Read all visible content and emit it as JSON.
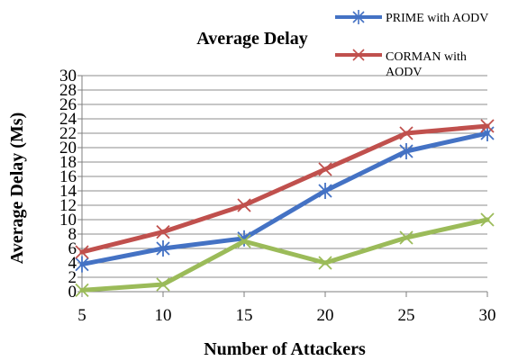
{
  "chart_data": {
    "type": "line",
    "title": "Average Delay",
    "xlabel": "Number of Attackers",
    "ylabel": "Average Delay (Ms)",
    "x": [
      5,
      10,
      15,
      20,
      25,
      30
    ],
    "ylim": [
      0,
      30
    ],
    "yticks": [
      0,
      2,
      4,
      6,
      8,
      10,
      12,
      14,
      16,
      18,
      20,
      22,
      24,
      26,
      28,
      30
    ],
    "grid": true,
    "legend_position": "top-right",
    "series": [
      {
        "name": "PRIME with AODV",
        "color": "#4472C4",
        "values": [
          3.8,
          6.0,
          7.4,
          14.0,
          19.5,
          22.0
        ]
      },
      {
        "name": "CORMAN with AODV",
        "color": "#C0504D",
        "values": [
          5.5,
          8.3,
          12.0,
          17.0,
          22.0,
          23.0
        ]
      },
      {
        "color": "#9BBB59",
        "values": [
          0.2,
          1.0,
          7.0,
          4.0,
          7.5,
          10.0
        ]
      }
    ]
  }
}
